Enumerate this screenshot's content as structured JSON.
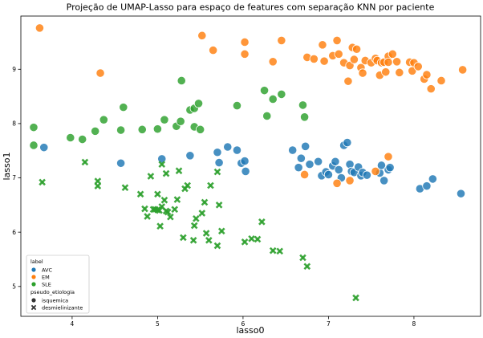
{
  "chart_data": {
    "type": "scatter",
    "title": "Projeção de UMAP-Lasso para espaço de features com separação KNN por paciente",
    "xlabel": "lasso0",
    "ylabel": "lasso1",
    "xlim": [
      3.4,
      8.78
    ],
    "ylim": [
      4.45,
      9.98
    ],
    "xticks": [
      "4",
      "5",
      "6",
      "7",
      "8"
    ],
    "yticks": [
      "5",
      "6",
      "7",
      "8",
      "9"
    ],
    "grid": false,
    "legend": {
      "placement": "bottom-left",
      "label_title": "label",
      "labels": [
        {
          "name": "AVC",
          "color": "#1f77b4"
        },
        {
          "name": "EM",
          "color": "#ff7f0e"
        },
        {
          "name": "SLE",
          "color": "#2ca02c"
        }
      ],
      "shape_title": "pseudo_etiologia",
      "shapes": [
        {
          "name": "isquemica",
          "marker": "circle"
        },
        {
          "name": "desmielinizante",
          "marker": "x"
        }
      ]
    },
    "series": [
      {
        "label": "AVC",
        "marker": "circle",
        "color": "#1f77b4",
        "points": [
          [
            3.67,
            7.56
          ],
          [
            4.57,
            7.27
          ],
          [
            5.05,
            7.35
          ],
          [
            5.38,
            7.41
          ],
          [
            5.7,
            7.47
          ],
          [
            5.72,
            7.28
          ],
          [
            5.82,
            7.57
          ],
          [
            5.93,
            7.51
          ],
          [
            5.98,
            7.27
          ],
          [
            6.02,
            7.31
          ],
          [
            6.03,
            7.12
          ],
          [
            6.58,
            7.51
          ],
          [
            6.65,
            7.19
          ],
          [
            6.68,
            7.36
          ],
          [
            6.73,
            7.58
          ],
          [
            6.78,
            7.25
          ],
          [
            6.88,
            7.3
          ],
          [
            6.92,
            7.04
          ],
          [
            6.97,
            7.11
          ],
          [
            7.0,
            7.06
          ],
          [
            7.05,
            7.22
          ],
          [
            7.08,
            7.3
          ],
          [
            7.12,
            7.15
          ],
          [
            7.15,
            7.0
          ],
          [
            7.18,
            7.6
          ],
          [
            7.22,
            7.65
          ],
          [
            7.25,
            7.25
          ],
          [
            7.27,
            7.12
          ],
          [
            7.3,
            7.1
          ],
          [
            7.35,
            7.2
          ],
          [
            7.38,
            7.04
          ],
          [
            7.4,
            7.1
          ],
          [
            7.45,
            7.05
          ],
          [
            7.6,
            7.09
          ],
          [
            7.62,
            7.23
          ],
          [
            7.65,
            6.95
          ],
          [
            7.7,
            7.15
          ],
          [
            7.72,
            7.19
          ],
          [
            8.07,
            6.8
          ],
          [
            8.15,
            6.85
          ],
          [
            8.22,
            6.98
          ],
          [
            8.55,
            6.71
          ]
        ]
      },
      {
        "label": "EM",
        "marker": "circle",
        "color": "#ff7f0e",
        "points": [
          [
            3.62,
            9.76
          ],
          [
            4.33,
            8.93
          ],
          [
            5.52,
            9.62
          ],
          [
            5.65,
            9.35
          ],
          [
            6.02,
            9.5
          ],
          [
            6.02,
            9.28
          ],
          [
            6.35,
            9.14
          ],
          [
            6.45,
            9.53
          ],
          [
            6.75,
            9.22
          ],
          [
            6.83,
            9.19
          ],
          [
            6.93,
            9.45
          ],
          [
            6.95,
            9.15
          ],
          [
            7.05,
            9.25
          ],
          [
            7.1,
            9.53
          ],
          [
            7.12,
            9.28
          ],
          [
            7.18,
            9.12
          ],
          [
            7.23,
            8.78
          ],
          [
            7.25,
            9.07
          ],
          [
            7.28,
            9.4
          ],
          [
            7.3,
            9.18
          ],
          [
            7.33,
            9.37
          ],
          [
            7.38,
            9.03
          ],
          [
            7.4,
            8.93
          ],
          [
            7.43,
            9.16
          ],
          [
            7.5,
            9.12
          ],
          [
            7.55,
            9.2
          ],
          [
            7.57,
            9.16
          ],
          [
            7.6,
            8.89
          ],
          [
            7.62,
            9.12
          ],
          [
            7.65,
            9.13
          ],
          [
            7.67,
            8.95
          ],
          [
            7.7,
            9.24
          ],
          [
            7.7,
            9.13
          ],
          [
            7.75,
            9.28
          ],
          [
            7.8,
            9.14
          ],
          [
            7.83,
            8.94
          ],
          [
            7.95,
            9.13
          ],
          [
            7.98,
            8.97
          ],
          [
            8.0,
            9.12
          ],
          [
            8.05,
            9.05
          ],
          [
            8.12,
            8.82
          ],
          [
            8.15,
            8.9
          ],
          [
            8.2,
            8.64
          ],
          [
            8.32,
            8.79
          ],
          [
            8.57,
            8.99
          ],
          [
            6.72,
            7.06
          ],
          [
            7.1,
            6.9
          ],
          [
            7.25,
            6.95
          ],
          [
            7.55,
            7.12
          ],
          [
            7.7,
            7.39
          ]
        ]
      },
      {
        "label": "SLE",
        "marker": "circle",
        "color": "#2ca02c",
        "points": [
          [
            3.55,
            7.93
          ],
          [
            3.55,
            7.6
          ],
          [
            3.98,
            7.74
          ],
          [
            4.12,
            7.71
          ],
          [
            4.27,
            7.86
          ],
          [
            4.37,
            8.07
          ],
          [
            4.57,
            7.88
          ],
          [
            4.6,
            8.3
          ],
          [
            4.82,
            7.89
          ],
          [
            5.0,
            7.9
          ],
          [
            5.08,
            8.07
          ],
          [
            5.22,
            7.95
          ],
          [
            5.28,
            8.79
          ],
          [
            5.27,
            8.04
          ],
          [
            5.38,
            8.25
          ],
          [
            5.43,
            8.28
          ],
          [
            5.43,
            7.94
          ],
          [
            5.48,
            8.37
          ],
          [
            5.5,
            7.89
          ],
          [
            5.93,
            8.33
          ],
          [
            6.25,
            8.61
          ],
          [
            6.28,
            8.14
          ],
          [
            6.35,
            8.45
          ],
          [
            6.45,
            8.54
          ],
          [
            6.7,
            8.34
          ],
          [
            6.72,
            8.12
          ]
        ]
      },
      {
        "label": "SLE",
        "marker": "x",
        "color": "#2ca02c",
        "points": [
          [
            3.65,
            6.92
          ],
          [
            4.15,
            7.29
          ],
          [
            4.3,
            6.94
          ],
          [
            4.3,
            6.85
          ],
          [
            4.62,
            6.82
          ],
          [
            4.8,
            6.7
          ],
          [
            4.85,
            6.43
          ],
          [
            4.88,
            6.29
          ],
          [
            4.92,
            7.03
          ],
          [
            4.95,
            6.42
          ],
          [
            4.97,
            6.42
          ],
          [
            5.0,
            6.41
          ],
          [
            5.0,
            6.7
          ],
          [
            5.02,
            6.4
          ],
          [
            5.03,
            6.11
          ],
          [
            5.05,
            6.47
          ],
          [
            5.05,
            7.25
          ],
          [
            5.08,
            6.59
          ],
          [
            5.1,
            7.08
          ],
          [
            5.1,
            6.39
          ],
          [
            5.12,
            6.37
          ],
          [
            5.15,
            6.28
          ],
          [
            5.2,
            6.42
          ],
          [
            5.23,
            6.6
          ],
          [
            5.25,
            7.13
          ],
          [
            5.3,
            5.9
          ],
          [
            5.32,
            6.8
          ],
          [
            5.35,
            6.86
          ],
          [
            5.42,
            5.85
          ],
          [
            5.43,
            6.12
          ],
          [
            5.45,
            6.25
          ],
          [
            5.52,
            6.35
          ],
          [
            5.55,
            6.55
          ],
          [
            5.57,
            5.98
          ],
          [
            5.6,
            5.85
          ],
          [
            5.62,
            6.86
          ],
          [
            5.7,
            7.11
          ],
          [
            5.72,
            6.5
          ],
          [
            5.7,
            5.75
          ],
          [
            5.75,
            6.02
          ],
          [
            6.02,
            5.82
          ],
          [
            6.1,
            5.88
          ],
          [
            6.17,
            5.87
          ],
          [
            6.22,
            6.19
          ],
          [
            6.35,
            5.66
          ],
          [
            6.43,
            5.65
          ],
          [
            6.7,
            5.53
          ],
          [
            6.75,
            5.37
          ],
          [
            7.32,
            4.79
          ]
        ]
      }
    ]
  }
}
